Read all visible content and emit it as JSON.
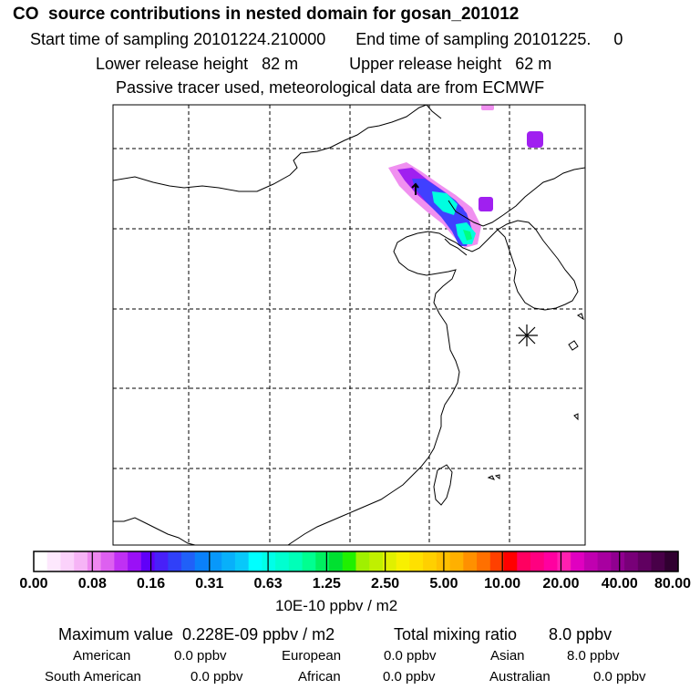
{
  "header": {
    "title": "CO  source contributions in nested domain for gosan_201012",
    "start_label": "Start time of sampling 20101224.210000",
    "end_label": "End time of sampling 20101225.     0",
    "lower_label": "Lower release height   82 m",
    "upper_label": "Upper release height   62 m",
    "note": "Passive tracer used, meteorological data are from ECMWF"
  },
  "colors": {
    "frame": "#000000",
    "grid": "#000000",
    "coast": "#000000",
    "plume_low": "#f090f0",
    "plume_mid": "#a020f0",
    "plume_high": "#4040ff",
    "plume_core": "#00ffe0",
    "plume_peak": "#00ff80"
  },
  "chart_data": {
    "type": "heatmap",
    "title": "CO  source contributions in nested domain for gosan_201012",
    "colorbar": {
      "unit_label": "10E-10 ppbv / m2",
      "tick_labels": [
        "0.00",
        "0.08",
        "0.16",
        "0.31",
        "0.63",
        "1.25",
        "2.50",
        "5.00",
        "10.00",
        "20.00",
        "40.00",
        "80.00"
      ],
      "colors": [
        "#ffffff",
        "#fde8fd",
        "#fbd2fb",
        "#f6b4f6",
        "#ee88f0",
        "#dd60f0",
        "#c030f4",
        "#9a10f6",
        "#6000f8",
        "#4820f8",
        "#3040f8",
        "#2060f8",
        "#0a80fa",
        "#0898fa",
        "#08b0fa",
        "#08c8fa",
        "#00ffff",
        "#00ffe8",
        "#00ffd0",
        "#00ffb8",
        "#00ff90",
        "#00f060",
        "#00e030",
        "#20f000",
        "#a0f000",
        "#c0f000",
        "#e0f000",
        "#f8f000",
        "#ffe000",
        "#ffd000",
        "#ffc000",
        "#ffb000",
        "#ff9000",
        "#ff7000",
        "#ff4000",
        "#ff0000",
        "#ff0060",
        "#ff0080",
        "#ff00a0",
        "#ff20b0",
        "#e000c0",
        "#c000b0",
        "#a800a0",
        "#900090",
        "#780078",
        "#600060",
        "#480048",
        "#300030"
      ]
    },
    "receptor_marker": "gosan",
    "summary": {
      "max_value_label": "Maximum value  0.228E-09 ppbv / m2",
      "total_label": "Total mixing ratio       8.0 ppbv"
    },
    "regions": [
      {
        "name": "American",
        "value": "0.0 ppbv"
      },
      {
        "name": "European",
        "value": "0.0 ppbv"
      },
      {
        "name": "Asian",
        "value": "8.0 ppbv"
      },
      {
        "name": "South American",
        "value": "0.0 ppbv"
      },
      {
        "name": "African",
        "value": "0.0 ppbv"
      },
      {
        "name": "Australian",
        "value": "0.0 ppbv"
      }
    ]
  }
}
